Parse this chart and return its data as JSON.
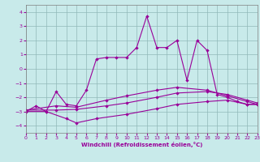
{
  "xlabel": "Windchill (Refroidissement éolien,°C)",
  "xlim": [
    0,
    23
  ],
  "ylim": [
    -4.5,
    4.5
  ],
  "yticks": [
    -4,
    -3,
    -2,
    -1,
    0,
    1,
    2,
    3,
    4
  ],
  "xticks": [
    0,
    1,
    2,
    3,
    4,
    5,
    6,
    7,
    8,
    9,
    10,
    11,
    12,
    13,
    14,
    15,
    16,
    17,
    18,
    19,
    20,
    21,
    22,
    23
  ],
  "background_color": "#c8eaea",
  "line_color": "#990099",
  "series_main": [
    [
      0,
      -3.0
    ],
    [
      1,
      -2.6
    ],
    [
      2,
      -3.0
    ],
    [
      3,
      -1.6
    ],
    [
      4,
      -2.5
    ],
    [
      5,
      -2.6
    ],
    [
      6,
      -1.5
    ],
    [
      7,
      0.7
    ],
    [
      8,
      0.8
    ],
    [
      9,
      0.8
    ],
    [
      10,
      0.8
    ],
    [
      11,
      1.5
    ],
    [
      12,
      3.7
    ],
    [
      13,
      1.5
    ],
    [
      14,
      1.5
    ],
    [
      15,
      2.0
    ],
    [
      16,
      -0.8
    ],
    [
      17,
      2.0
    ],
    [
      18,
      1.3
    ],
    [
      19,
      -1.8
    ],
    [
      20,
      -2.0
    ],
    [
      21,
      -2.3
    ],
    [
      22,
      -2.5
    ],
    [
      23,
      -2.5
    ]
  ],
  "series_line2": [
    [
      0,
      -2.9
    ],
    [
      3,
      -2.9
    ],
    [
      5,
      -2.85
    ],
    [
      8,
      -2.6
    ],
    [
      10,
      -2.4
    ],
    [
      13,
      -2.0
    ],
    [
      15,
      -1.7
    ],
    [
      18,
      -1.6
    ],
    [
      20,
      -1.8
    ],
    [
      22,
      -2.2
    ],
    [
      23,
      -2.4
    ]
  ],
  "series_line3": [
    [
      0,
      -3.0
    ],
    [
      2,
      -3.0
    ],
    [
      4,
      -3.5
    ],
    [
      5,
      -3.8
    ],
    [
      7,
      -3.5
    ],
    [
      10,
      -3.2
    ],
    [
      13,
      -2.8
    ],
    [
      15,
      -2.5
    ],
    [
      18,
      -2.3
    ],
    [
      20,
      -2.2
    ],
    [
      22,
      -2.5
    ],
    [
      23,
      -2.5
    ]
  ],
  "series_line4": [
    [
      0,
      -2.9
    ],
    [
      3,
      -2.6
    ],
    [
      5,
      -2.7
    ],
    [
      8,
      -2.2
    ],
    [
      10,
      -1.9
    ],
    [
      13,
      -1.5
    ],
    [
      15,
      -1.3
    ],
    [
      18,
      -1.5
    ],
    [
      20,
      -1.9
    ],
    [
      22,
      -2.3
    ],
    [
      23,
      -2.5
    ]
  ]
}
